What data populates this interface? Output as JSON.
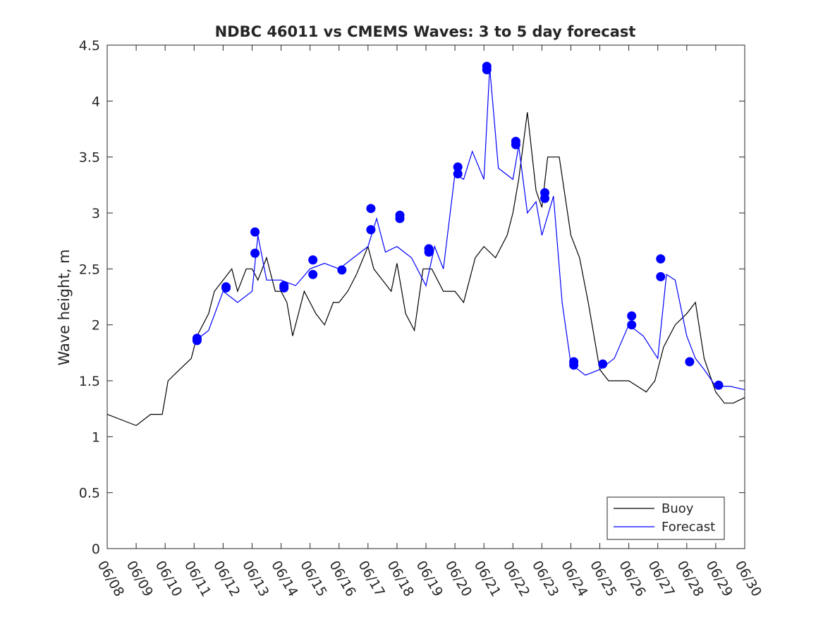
{
  "chart_data": {
    "type": "line",
    "title": "NDBC 46011 vs CMEMS Waves: 3 to 5 day forecast",
    "xlabel": "",
    "ylabel": "Wave height, m",
    "xlim": [
      0,
      22
    ],
    "ylim": [
      0,
      4.5
    ],
    "x_unit": "days since 06/08",
    "x_ticks": [
      "06/08",
      "06/09",
      "06/10",
      "06/11",
      "06/12",
      "06/13",
      "06/14",
      "06/15",
      "06/16",
      "06/17",
      "06/18",
      "06/19",
      "06/20",
      "06/21",
      "06/22",
      "06/23",
      "06/24",
      "06/25",
      "06/26",
      "06/27",
      "06/28",
      "06/29",
      "06/30"
    ],
    "y_ticks": [
      "0",
      "0.5",
      "1",
      "1.5",
      "2",
      "2.5",
      "3",
      "3.5",
      "4",
      "4.5"
    ],
    "grid": false,
    "legend_position": "bottom-right",
    "colors": {
      "buoy": "#000000",
      "forecast": "#0000ff",
      "axis": "#262626"
    },
    "series": [
      {
        "name": "Buoy",
        "x": [
          0,
          0.5,
          1,
          1.5,
          1.9,
          2.1,
          2.5,
          2.9,
          3.1,
          3.5,
          3.7,
          4,
          4.3,
          4.5,
          4.8,
          5,
          5.2,
          5.5,
          5.8,
          6,
          6.2,
          6.4,
          6.6,
          6.8,
          7,
          7.2,
          7.5,
          7.8,
          8,
          8.3,
          8.6,
          9,
          9.2,
          9.5,
          9.8,
          10,
          10.3,
          10.6,
          10.9,
          11.2,
          11.6,
          12,
          12.3,
          12.7,
          13,
          13.4,
          13.8,
          14,
          14.2,
          14.5,
          14.8,
          15,
          15.2,
          15.6,
          16,
          16.3,
          16.6,
          17,
          17.3,
          17.6,
          18,
          18.3,
          18.6,
          18.9,
          19.2,
          19.6,
          20,
          20.3,
          20.6,
          21,
          21.3,
          21.6,
          22
        ],
        "values": [
          1.2,
          1.15,
          1.1,
          1.2,
          1.2,
          1.5,
          1.6,
          1.7,
          1.9,
          2.1,
          2.3,
          2.4,
          2.5,
          2.3,
          2.5,
          2.5,
          2.4,
          2.6,
          2.3,
          2.3,
          2.2,
          1.9,
          2.1,
          2.3,
          2.2,
          2.1,
          2.0,
          2.2,
          2.2,
          2.3,
          2.45,
          2.7,
          2.5,
          2.4,
          2.3,
          2.55,
          2.1,
          1.95,
          2.5,
          2.5,
          2.3,
          2.3,
          2.2,
          2.6,
          2.7,
          2.6,
          2.8,
          3.0,
          3.3,
          3.9,
          3.2,
          3.05,
          3.5,
          3.5,
          2.8,
          2.6,
          2.2,
          1.6,
          1.5,
          1.5,
          1.5,
          1.45,
          1.4,
          1.5,
          1.8,
          2.0,
          2.1,
          2.2,
          1.7,
          1.4,
          1.3,
          1.3,
          1.35
        ]
      },
      {
        "name": "Forecast",
        "x": [
          3,
          3.5,
          4,
          4.5,
          5,
          5.2,
          5.5,
          6,
          6.5,
          7,
          7.5,
          8,
          8.5,
          9,
          9.3,
          9.6,
          10,
          10.5,
          11,
          11.3,
          11.6,
          12,
          12.3,
          12.6,
          13,
          13.2,
          13.5,
          14,
          14.2,
          14.5,
          14.8,
          15,
          15.4,
          15.7,
          16,
          16.5,
          17,
          17.5,
          18,
          18.5,
          19,
          19.3,
          19.6,
          20,
          20.3,
          20.6,
          21,
          21.5,
          22
        ],
        "values": [
          1.85,
          1.95,
          2.3,
          2.2,
          2.3,
          2.8,
          2.4,
          2.4,
          2.35,
          2.5,
          2.55,
          2.5,
          2.6,
          2.7,
          2.95,
          2.65,
          2.7,
          2.6,
          2.35,
          2.7,
          2.5,
          3.35,
          3.3,
          3.55,
          3.3,
          4.3,
          3.4,
          3.3,
          3.6,
          3.0,
          3.1,
          2.8,
          3.15,
          2.2,
          1.65,
          1.55,
          1.6,
          1.7,
          2.0,
          1.9,
          1.7,
          2.45,
          2.4,
          1.9,
          1.7,
          1.6,
          1.45,
          1.45,
          1.42
        ]
      }
    ],
    "forecast_markers": {
      "x": [
        3.1,
        3.1,
        4.1,
        4.1,
        5.1,
        5.1,
        6.1,
        6.1,
        7.1,
        7.1,
        8.1,
        9.1,
        9.1,
        10.1,
        10.1,
        11.1,
        11.1,
        12.1,
        12.1,
        13.1,
        13.1,
        14.1,
        14.1,
        15.1,
        15.1,
        16.1,
        16.1,
        17.1,
        18.1,
        18.1,
        19.1,
        19.1,
        20.1,
        21.1
      ],
      "values": [
        1.86,
        1.88,
        2.33,
        2.34,
        2.64,
        2.83,
        2.33,
        2.35,
        2.45,
        2.58,
        2.49,
        2.85,
        3.04,
        2.95,
        2.98,
        2.65,
        2.68,
        3.35,
        3.41,
        4.28,
        4.31,
        3.61,
        3.64,
        3.13,
        3.18,
        1.64,
        1.67,
        1.65,
        2.0,
        2.08,
        2.43,
        2.59,
        1.67,
        1.46
      ]
    },
    "legend": [
      "Buoy",
      "Forecast"
    ]
  }
}
